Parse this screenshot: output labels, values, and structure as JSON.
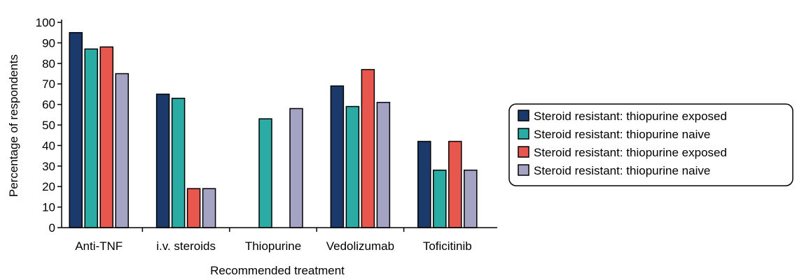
{
  "chart_data": {
    "type": "bar",
    "title": "",
    "xlabel": "Recommended treatment",
    "ylabel": "Percentage of respondents",
    "ylim": [
      0,
      100
    ],
    "yticks": [
      0,
      10,
      20,
      30,
      40,
      50,
      60,
      70,
      80,
      90,
      100
    ],
    "grid": false,
    "legend_position": "right",
    "categories": [
      "Anti-TNF",
      "i.v. steroids",
      "Thiopurine",
      "Vedolizumab",
      "Toficitinib"
    ],
    "series": [
      {
        "name": "Steroid resistant: thiopurine exposed",
        "color": "#1b3a6b",
        "values": [
          95,
          65,
          0,
          69,
          42
        ]
      },
      {
        "name": "Steroid resistant: thiopurine naive",
        "color": "#2aaba3",
        "values": [
          87,
          63,
          53,
          59,
          28
        ]
      },
      {
        "name": "Steroid resistant: thiopurine exposed",
        "color": "#e8574e",
        "values": [
          88,
          19,
          0,
          77,
          42
        ]
      },
      {
        "name": "Steroid resistant: thiopurine naive",
        "color": "#a5a3c4",
        "values": [
          75,
          19,
          58,
          61,
          28
        ]
      }
    ]
  }
}
